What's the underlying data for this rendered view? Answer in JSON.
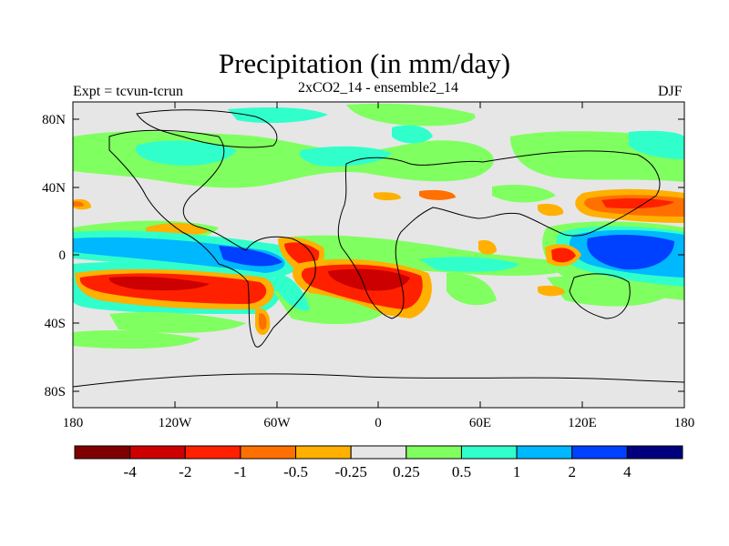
{
  "title": "Precipitation (in mm/day)",
  "subtitle": "2xCO2_14 - ensemble2_14",
  "left_label": "Expt = tcvun-tcrun",
  "right_label": "DJF",
  "colors": {
    "background": "#e6e6e6",
    "neg_strong": "#7f0000",
    "neg4": "#cc0000",
    "neg2": "#ff2000",
    "neg1": "#ff7000",
    "neg05": "#ffb000",
    "neutral": "#e6e6e6",
    "pos025": "#80ff60",
    "pos05": "#30ffcc",
    "pos1": "#00b8ff",
    "pos2": "#0040ff",
    "pos4": "#00007f"
  },
  "map": {
    "lon_ticks": [
      "180",
      "120W",
      "60W",
      "0",
      "60E",
      "120E",
      "180"
    ],
    "lat_ticks": [
      "80N",
      "40N",
      "0",
      "40S",
      "80S"
    ]
  },
  "colorbar": {
    "colors": [
      "#7f0000",
      "#cc0000",
      "#ff2000",
      "#ff7000",
      "#ffb000",
      "#e6e6e6",
      "#80ff60",
      "#30ffcc",
      "#00b8ff",
      "#0040ff",
      "#00007f"
    ],
    "labels": [
      "-4",
      "-2",
      "-1",
      "-0.5",
      "-0.25",
      "0.25",
      "0.5",
      "1",
      "2",
      "4"
    ]
  }
}
